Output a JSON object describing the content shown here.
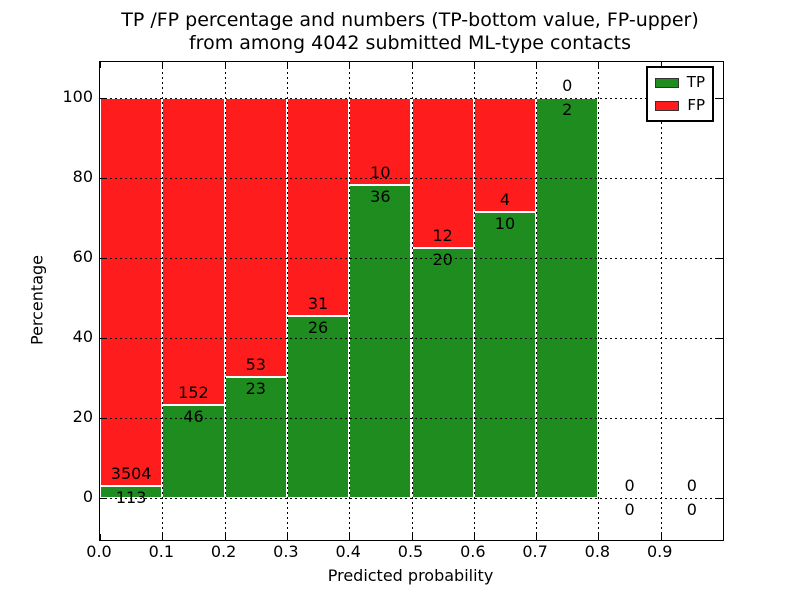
{
  "chart_data": {
    "type": "bar",
    "stacked": true,
    "percentage_scale": true,
    "title": "TP /FP percentage and numbers (TP-bottom value, FP-upper)",
    "title_line2": "from among 4042 submitted ML-type contacts",
    "xlabel": "Predicted probability",
    "ylabel": "Percentage",
    "xlim": [
      0.0,
      1.0
    ],
    "ylim": [
      -10.5,
      109
    ],
    "bin_width": 0.1,
    "grid": true,
    "x_ticks": [
      0.0,
      0.1,
      0.2,
      0.3,
      0.4,
      0.5,
      0.6,
      0.7,
      0.8,
      0.9
    ],
    "x_tick_labels": [
      "0.0",
      "0.1",
      "0.2",
      "0.3",
      "0.4",
      "0.5",
      "0.6",
      "0.7",
      "0.8",
      "0.9"
    ],
    "y_ticks": [
      0,
      20,
      40,
      60,
      80,
      100
    ],
    "y_tick_labels": [
      "0",
      "20",
      "40",
      "60",
      "80",
      "100"
    ],
    "categories": [
      "0.0-0.1",
      "0.1-0.2",
      "0.2-0.3",
      "0.3-0.4",
      "0.4-0.5",
      "0.5-0.6",
      "0.6-0.7",
      "0.7-0.8",
      "0.8-0.9",
      "0.9-1.0"
    ],
    "series": [
      {
        "name": "TP",
        "color": "#1e8c1e",
        "counts": [
          113,
          46,
          23,
          26,
          36,
          20,
          10,
          2,
          0,
          0
        ]
      },
      {
        "name": "FP",
        "color": "#ff1c1c",
        "counts": [
          3504,
          152,
          53,
          31,
          10,
          12,
          4,
          0,
          0,
          0
        ]
      }
    ],
    "tp_percent": [
      3.12,
      23.23,
      30.26,
      45.61,
      78.26,
      62.5,
      71.43,
      100.0,
      0,
      0
    ],
    "legend": {
      "position": "upper right",
      "entries": [
        {
          "label": "TP",
          "color": "#1e8c1e"
        },
        {
          "label": "FP",
          "color": "#ff1c1c"
        }
      ]
    },
    "colors": {
      "grid": "#000000",
      "axis": "#000000",
      "background": "#ffffff",
      "bar_edge": "#ffffff"
    }
  }
}
